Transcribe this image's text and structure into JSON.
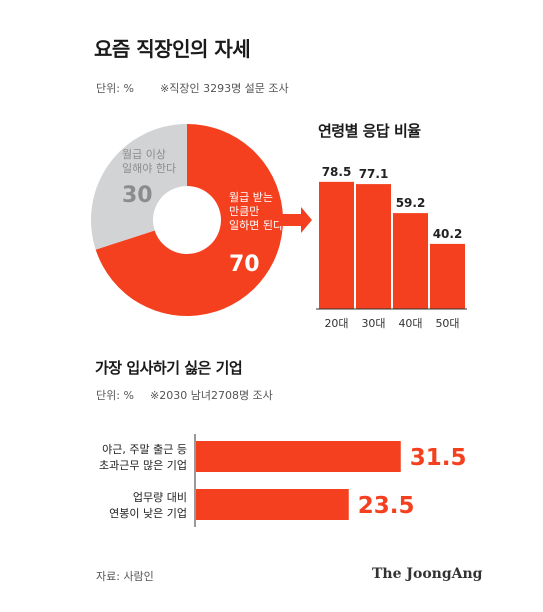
{
  "title": "요즘 직장인의 자세",
  "unit_label": "단위: %",
  "survey_note": "※직장인 3293명 설문 조사",
  "donut": {
    "slices": [
      {
        "label_lines": [
          "월급 받는",
          "만큼만",
          "일하면 된다"
        ],
        "value": 70,
        "color": "#f4401f"
      },
      {
        "label_lines": [
          "월급 이상",
          "일해야 한다"
        ],
        "value": 30,
        "color": "#d1d3d4"
      }
    ]
  },
  "age_chart": {
    "title": "연령별 응답 비율",
    "categories": [
      "20대",
      "30대",
      "40대",
      "50대"
    ],
    "values": [
      78.5,
      77.1,
      59.2,
      40.2
    ],
    "color": "#f4401f"
  },
  "company_chart": {
    "title": "가장 입사하기 싫은 기업",
    "unit_label": "단위: %",
    "survey_note": "※2030 남녀2708명 조사",
    "items": [
      {
        "label_lines": [
          "야근, 주말 출근 등",
          "초과근무 많은 기업"
        ],
        "value": 31.5
      },
      {
        "label_lines": [
          "업무량 대비",
          "연봉이 낮은 기업"
        ],
        "value": 23.5
      }
    ],
    "color": "#f4401f"
  },
  "chart_data": [
    {
      "type": "pie",
      "categories": [
        "월급 받는 만큼만 일하면 된다",
        "월급 이상 일해야 한다"
      ],
      "values": [
        70,
        30
      ],
      "title": "요즘 직장인의 자세"
    },
    {
      "type": "bar",
      "title": "연령별 응답 비율",
      "categories": [
        "20대",
        "30대",
        "40대",
        "50대"
      ],
      "values": [
        78.5,
        77.1,
        59.2,
        40.2
      ]
    },
    {
      "type": "bar",
      "title": "가장 입사하기 싫은 기업",
      "categories": [
        "야근, 주말 출근 등 초과근무 많은 기업",
        "업무량 대비 연봉이 낮은 기업"
      ],
      "values": [
        31.5,
        23.5
      ]
    }
  ],
  "source": "자료: 사람인",
  "logo": "The JoongAng"
}
